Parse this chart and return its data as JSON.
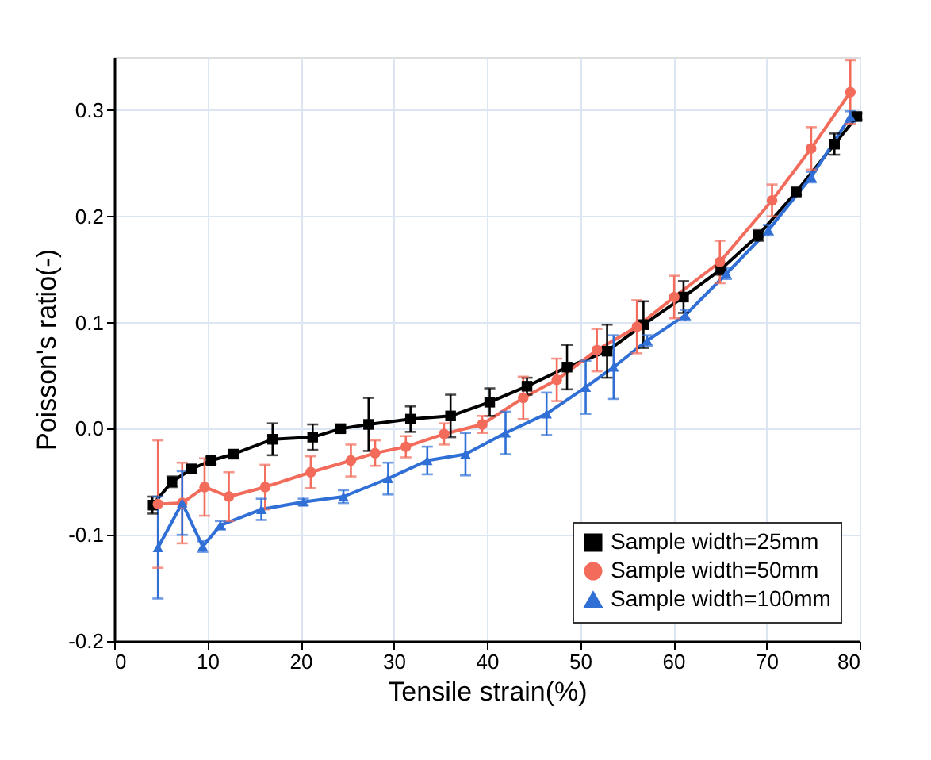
{
  "chart_data": {
    "type": "line",
    "xlabel": "Tensile strain(%)",
    "ylabel": "Poisson's ratio(-)",
    "xlim": [
      0,
      80
    ],
    "xticks": [
      0,
      10,
      20,
      30,
      40,
      50,
      60,
      70,
      80
    ],
    "ylim": [
      -0.2,
      0.35
    ],
    "yticks": [
      {
        "value": -0.2,
        "label": "-0.2"
      },
      {
        "value": -0.1,
        "label": "-0.1"
      },
      {
        "value": 0,
        "label": "0.0"
      },
      {
        "value": 0.1,
        "label": "0.1"
      },
      {
        "value": 0.2,
        "label": "0.2"
      },
      {
        "value": 0.3,
        "label": "0.3"
      }
    ],
    "grid": true,
    "legend": "bottom right",
    "line_style": "solid",
    "series": [
      {
        "name": "Sample width=25mm",
        "color": "#000000",
        "marker": "square",
        "x": [
          4.1,
          6.2,
          8.3,
          10.4,
          12.8,
          17.0,
          21.3,
          24.3,
          27.3,
          31.8,
          36.1,
          40.3,
          44.3,
          48.6,
          52.9,
          56.8,
          61.1,
          65.1,
          69.1,
          73.2,
          77.3,
          79.7
        ],
        "values": [
          -0.072,
          -0.05,
          -0.038,
          -0.03,
          -0.024,
          -0.01,
          -0.008,
          0.0,
          0.004,
          0.009,
          0.012,
          0.025,
          0.04,
          0.058,
          0.073,
          0.098,
          0.124,
          0.15,
          0.182,
          0.223,
          0.268,
          0.294
        ],
        "errors": [
          0.008,
          0.005,
          0.004,
          0.003,
          0.003,
          0.015,
          0.012,
          0.003,
          0.025,
          0.012,
          0.02,
          0.013,
          0.008,
          0.021,
          0.025,
          0.022,
          0.015,
          0.005,
          0.005,
          0.003,
          0.01,
          0.003
        ]
      },
      {
        "name": "Sample width=50mm",
        "color": "#f26b5b",
        "marker": "circle",
        "x": [
          4.7,
          7.3,
          9.7,
          12.3,
          16.2,
          21.1,
          25.4,
          28.0,
          31.3,
          35.4,
          39.5,
          43.9,
          47.5,
          51.8,
          56.1,
          60.1,
          65.0,
          70.6,
          74.8,
          79.0
        ],
        "values": [
          -0.071,
          -0.07,
          -0.055,
          -0.064,
          -0.055,
          -0.041,
          -0.03,
          -0.023,
          -0.017,
          -0.005,
          0.004,
          0.029,
          0.046,
          0.074,
          0.096,
          0.124,
          0.157,
          0.215,
          0.264,
          0.317
        ],
        "errors": [
          0.06,
          0.038,
          0.027,
          0.023,
          0.021,
          0.015,
          0.015,
          0.012,
          0.01,
          0.01,
          0.008,
          0.02,
          0.02,
          0.02,
          0.025,
          0.02,
          0.02,
          0.015,
          0.02,
          0.03
        ]
      },
      {
        "name": "Sample width=100mm",
        "color": "#2f6fd6",
        "marker": "triangle",
        "x": [
          4.7,
          7.3,
          9.5,
          11.4,
          15.8,
          20.3,
          24.6,
          29.4,
          33.6,
          37.7,
          42.0,
          46.4,
          50.6,
          53.6,
          57.2,
          61.3,
          65.7,
          70.2,
          74.8,
          79.0
        ],
        "values": [
          -0.112,
          -0.07,
          -0.111,
          -0.091,
          -0.076,
          -0.069,
          -0.064,
          -0.047,
          -0.03,
          -0.024,
          -0.004,
          0.014,
          0.039,
          0.058,
          0.083,
          0.107,
          0.146,
          0.187,
          0.237,
          0.294
        ],
        "errors": [
          0.048,
          0.03,
          0.005,
          0.004,
          0.01,
          0.003,
          0.006,
          0.015,
          0.013,
          0.02,
          0.02,
          0.02,
          0.025,
          0.03,
          0.005,
          0.005,
          0.005,
          0.005,
          0.005,
          0.005
        ]
      }
    ]
  }
}
